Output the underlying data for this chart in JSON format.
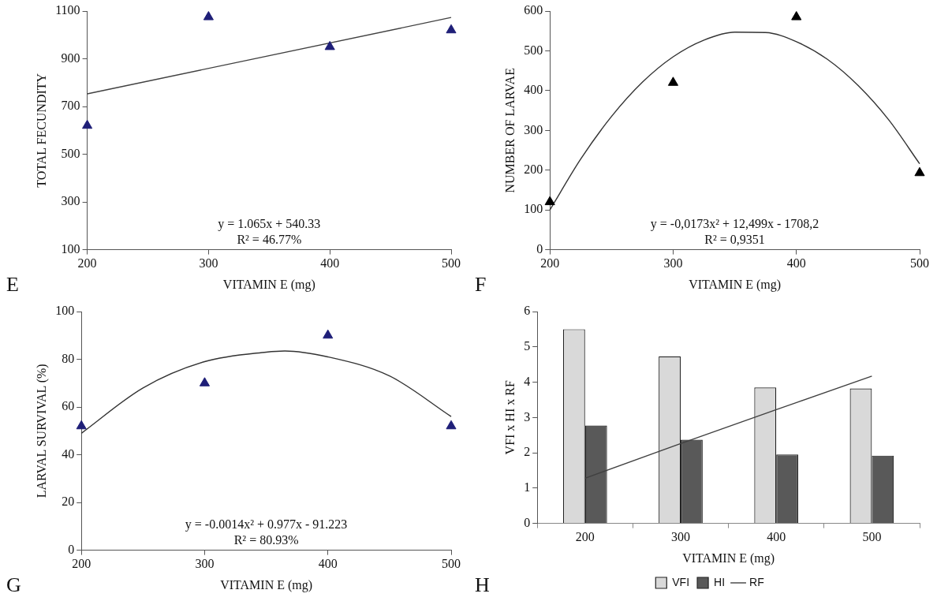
{
  "chart_data": [
    {
      "type": "scatter",
      "x": [
        200,
        300,
        400,
        500
      ],
      "xlabel": "VITAMIN E (mg)",
      "ylabel": "TOTAL FECUNDITY",
      "xlim": [
        200,
        500
      ],
      "xticks": [
        200,
        300,
        400,
        500
      ],
      "ylim": [
        100,
        1100
      ],
      "yticks": [
        100,
        300,
        500,
        700,
        900,
        1100
      ],
      "series": [
        {
          "color": "#1f1f78",
          "marker": "triangle",
          "values": [
            620,
            1075,
            950,
            1020
          ]
        },
        {
          "type": "line",
          "marker": "none",
          "color": "#404040",
          "x": [
            200,
            500
          ],
          "values": [
            753,
            1073
          ]
        }
      ],
      "annotations": [
        "E",
        "y = 1.065x + 540.33",
        "R² = 46.77%"
      ]
    },
    {
      "type": "scatter",
      "x": [
        200,
        300,
        400,
        500
      ],
      "xlabel": "VITAMIN E (mg)",
      "ylabel": "NUMBER OF LARVAE",
      "xlim": [
        200,
        500
      ],
      "xticks": [
        200,
        300,
        400,
        500
      ],
      "ylim": [
        0,
        600
      ],
      "yticks": [
        0,
        100,
        200,
        300,
        400,
        500,
        600
      ],
      "series": [
        {
          "color": "#000000",
          "marker": "triangle",
          "values": [
            120,
            420,
            585,
            193
          ]
        },
        {
          "type": "line",
          "marker": "none",
          "color": "#333333",
          "x": [
            200,
            225,
            250,
            275,
            300,
            325,
            350,
            375,
            400,
            425,
            450,
            475,
            500
          ],
          "values": [
            100,
            228,
            335,
            421,
            485,
            527,
            547,
            546,
            523,
            479,
            413,
            326,
            216
          ]
        }
      ],
      "annotations": [
        "F",
        "y = -0,0173x² + 12,499x - 1708,2",
        "R² = 0,9351"
      ]
    },
    {
      "type": "scatter",
      "x": [
        200,
        300,
        400,
        500
      ],
      "xlabel": "VITAMIN E (mg)",
      "ylabel": "LARVAL SURVIVAL (%)",
      "xlim": [
        200,
        500
      ],
      "xticks": [
        200,
        300,
        400,
        500
      ],
      "ylim": [
        0,
        100
      ],
      "yticks": [
        0,
        20,
        40,
        60,
        80,
        100
      ],
      "series": [
        {
          "color": "#1f1f78",
          "marker": "triangle",
          "values": [
            52,
            70,
            90,
            52
          ]
        },
        {
          "type": "line",
          "marker": "none",
          "color": "#333333",
          "x": [
            200,
            250,
            300,
            350,
            365,
            400,
            450,
            500
          ],
          "values": [
            49,
            68,
            79,
            83,
            83.5,
            81,
            73,
            56
          ]
        }
      ],
      "annotations": [
        "G",
        "y = -0.0014x² + 0.977x - 91.223",
        "R² = 80.93%"
      ]
    },
    {
      "type": "bar",
      "categories": [
        "200",
        "300",
        "400",
        "500"
      ],
      "xlabel": "VITAMIN E (mg)",
      "ylabel": "VFI x HI x RF",
      "ylim": [
        0,
        6
      ],
      "yticks": [
        0,
        1,
        2,
        3,
        4,
        5,
        6
      ],
      "legend": "bottom",
      "series": [
        {
          "name": "VFI",
          "color": "#d9d9d9",
          "values": [
            5.5,
            4.73,
            3.85,
            3.82
          ]
        },
        {
          "name": "HI",
          "color": "#595959",
          "values": [
            2.77,
            2.37,
            1.95,
            1.92
          ]
        },
        {
          "name": "RF",
          "type": "line",
          "color": "#404040",
          "values": [
            1.28,
            2.26,
            3.22,
            4.17
          ]
        }
      ],
      "annotations": [
        "H"
      ]
    }
  ]
}
